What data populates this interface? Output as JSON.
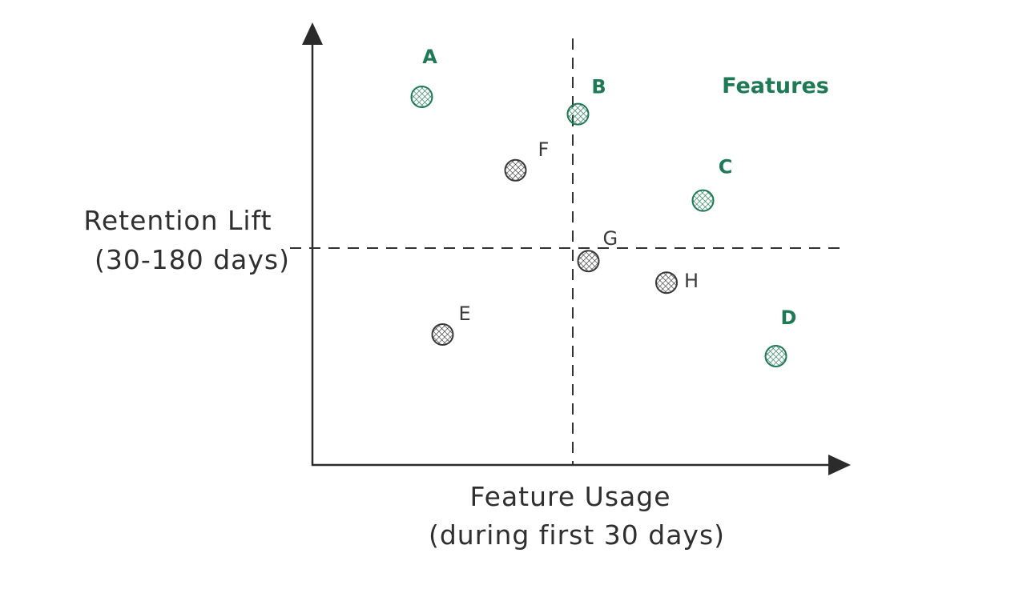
{
  "chart_data": {
    "type": "scatter",
    "title": "",
    "xlabel": [
      "Feature Usage",
      "(during first 30 days)"
    ],
    "ylabel": [
      "Retention Lift",
      "(30-180 days)"
    ],
    "xlim": [
      0,
      10
    ],
    "ylim": [
      0,
      10
    ],
    "grid": false,
    "quadrant_lines": {
      "x": 5,
      "y": 5
    },
    "legend": {
      "label": "Features",
      "placement": "top-right"
    },
    "colors": {
      "highlight": "#1e7a55",
      "normal": "#3a3a3a",
      "axis": "#2b2b2b"
    },
    "points": [
      {
        "label": "A",
        "x": 2.1,
        "y": 8.5,
        "group": "highlight"
      },
      {
        "label": "B",
        "x": 5.1,
        "y": 8.1,
        "group": "highlight"
      },
      {
        "label": "C",
        "x": 7.5,
        "y": 6.1,
        "group": "highlight"
      },
      {
        "label": "D",
        "x": 8.9,
        "y": 2.5,
        "group": "highlight"
      },
      {
        "label": "E",
        "x": 2.5,
        "y": 3.0,
        "group": "normal"
      },
      {
        "label": "F",
        "x": 3.9,
        "y": 6.8,
        "group": "normal"
      },
      {
        "label": "G",
        "x": 5.3,
        "y": 4.7,
        "group": "normal"
      },
      {
        "label": "H",
        "x": 6.8,
        "y": 4.2,
        "group": "normal"
      }
    ]
  }
}
